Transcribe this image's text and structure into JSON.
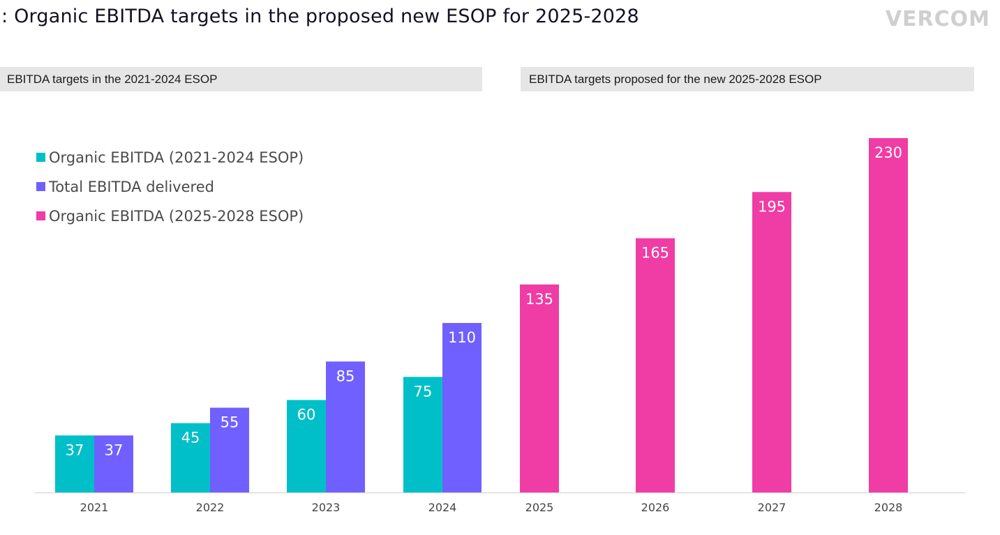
{
  "header": {
    "title": ": Organic EBITDA targets in the proposed new ESOP for 2025-2028",
    "logo": "VERCOM"
  },
  "sections": {
    "left": "EBITDA targets in the 2021-2024 ESOP",
    "right": "EBITDA targets proposed for the new 2025-2028 ESOP"
  },
  "colors": {
    "organic_2021_2024": "#00bfc8",
    "total_delivered": "#7060ff",
    "organic_2025_2028": "#f03ca5",
    "axis": "#d9d9d9"
  },
  "chart_data": {
    "type": "bar",
    "title": "Organic EBITDA targets in the proposed new ESOP for 2025-2028",
    "xlabel": "",
    "ylabel": "",
    "grid": false,
    "legend_position": "top-left",
    "ylim": [
      0,
      230
    ],
    "categories": [
      "2021",
      "2022",
      "2023",
      "2024",
      "2025",
      "2026",
      "2027",
      "2028"
    ],
    "series": [
      {
        "name": "Organic EBITDA (2021-2024 ESOP)",
        "color_key": "organic_2021_2024",
        "values": [
          37,
          45,
          60,
          75,
          null,
          null,
          null,
          null
        ]
      },
      {
        "name": "Total EBITDA delivered",
        "color_key": "total_delivered",
        "values": [
          37,
          55,
          85,
          110,
          null,
          null,
          null,
          null
        ]
      },
      {
        "name": "Organic EBITDA (2025-2028 ESOP)",
        "color_key": "organic_2025_2028",
        "values": [
          null,
          null,
          null,
          null,
          135,
          165,
          195,
          230
        ]
      }
    ]
  }
}
